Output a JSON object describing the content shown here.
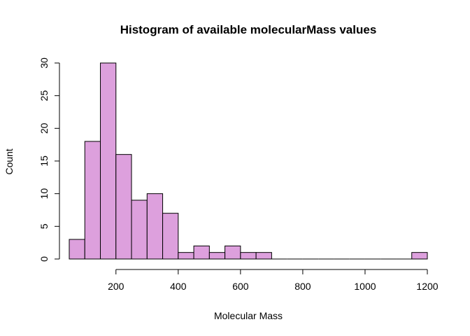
{
  "chart_data": {
    "type": "bar",
    "title": "Histogram of available molecularMass values",
    "xlabel": "Molecular Mass",
    "ylabel": "Count",
    "bar_color": "#DDA0DD",
    "bin_width": 50,
    "bins": [
      {
        "start": 50,
        "end": 100,
        "count": 3
      },
      {
        "start": 100,
        "end": 150,
        "count": 18
      },
      {
        "start": 150,
        "end": 200,
        "count": 30
      },
      {
        "start": 200,
        "end": 250,
        "count": 16
      },
      {
        "start": 250,
        "end": 300,
        "count": 9
      },
      {
        "start": 300,
        "end": 350,
        "count": 10
      },
      {
        "start": 350,
        "end": 400,
        "count": 7
      },
      {
        "start": 400,
        "end": 450,
        "count": 1
      },
      {
        "start": 450,
        "end": 500,
        "count": 2
      },
      {
        "start": 500,
        "end": 550,
        "count": 1
      },
      {
        "start": 550,
        "end": 600,
        "count": 2
      },
      {
        "start": 600,
        "end": 650,
        "count": 1
      },
      {
        "start": 650,
        "end": 700,
        "count": 1
      },
      {
        "start": 700,
        "end": 750,
        "count": 0
      },
      {
        "start": 750,
        "end": 800,
        "count": 0
      },
      {
        "start": 800,
        "end": 850,
        "count": 0
      },
      {
        "start": 850,
        "end": 900,
        "count": 0
      },
      {
        "start": 900,
        "end": 950,
        "count": 0
      },
      {
        "start": 950,
        "end": 1000,
        "count": 0
      },
      {
        "start": 1000,
        "end": 1050,
        "count": 0
      },
      {
        "start": 1050,
        "end": 1100,
        "count": 0
      },
      {
        "start": 1100,
        "end": 1150,
        "count": 0
      },
      {
        "start": 1150,
        "end": 1200,
        "count": 1
      }
    ],
    "x_ticks": [
      200,
      400,
      600,
      800,
      1000,
      1200
    ],
    "y_ticks": [
      0,
      5,
      10,
      15,
      20,
      25,
      30
    ],
    "xlim": [
      50,
      1200
    ],
    "ylim": [
      0,
      30
    ]
  }
}
